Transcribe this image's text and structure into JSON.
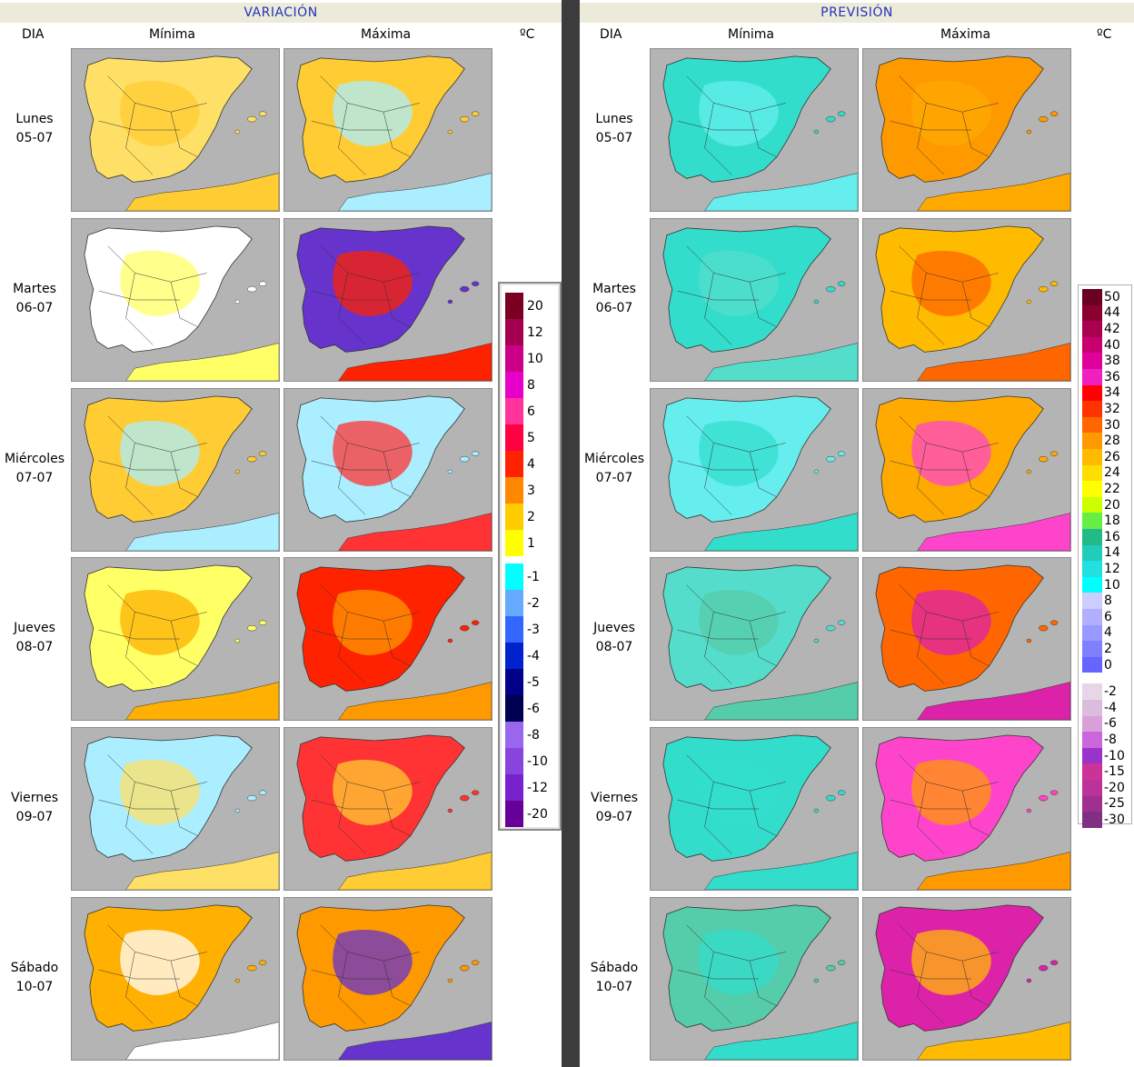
{
  "variacion": {
    "title": "VARIACIÓN",
    "col_day": "DIA",
    "col_min": "Mínima",
    "col_max": "Máxima",
    "unit": "ºC"
  },
  "prevision": {
    "title": "PREVISIÓN",
    "col_day": "DIA",
    "col_min": "Mínima",
    "col_max": "Máxima",
    "unit": "ºC"
  },
  "days": [
    {
      "name": "Lunes",
      "date": "05-07"
    },
    {
      "name": "Martes",
      "date": "06-07"
    },
    {
      "name": "Miércoles",
      "date": "07-07"
    },
    {
      "name": "Jueves",
      "date": "08-07"
    },
    {
      "name": "Viernes",
      "date": "09-07"
    },
    {
      "name": "Sábado",
      "date": "10-07"
    }
  ],
  "legend_variation": {
    "positive": [
      {
        "label": "20",
        "color": "#7a0021"
      },
      {
        "label": "12",
        "color": "#a5004f"
      },
      {
        "label": "10",
        "color": "#cc0088"
      },
      {
        "label": "8",
        "color": "#e600c8"
      },
      {
        "label": "6",
        "color": "#ff3399"
      },
      {
        "label": "5",
        "color": "#ff0040"
      },
      {
        "label": "4",
        "color": "#ff2200"
      },
      {
        "label": "3",
        "color": "#ff8800"
      },
      {
        "label": "2",
        "color": "#ffcc00"
      },
      {
        "label": "1",
        "color": "#ffff00"
      }
    ],
    "negative": [
      {
        "label": "-1",
        "color": "#00ffff"
      },
      {
        "label": "-2",
        "color": "#66aaff"
      },
      {
        "label": "-3",
        "color": "#3366ff"
      },
      {
        "label": "-4",
        "color": "#0022cc"
      },
      {
        "label": "-5",
        "color": "#000088"
      },
      {
        "label": "-6",
        "color": "#000050"
      },
      {
        "label": "-8",
        "color": "#9966ee"
      },
      {
        "label": "-10",
        "color": "#8844dd"
      },
      {
        "label": "-12",
        "color": "#7722cc"
      },
      {
        "label": "-20",
        "color": "#660099"
      }
    ]
  },
  "legend_forecast": {
    "items": [
      {
        "label": "50",
        "color": "#6b0020"
      },
      {
        "label": "44",
        "color": "#8c0030"
      },
      {
        "label": "42",
        "color": "#aa0050"
      },
      {
        "label": "40",
        "color": "#c8006f"
      },
      {
        "label": "38",
        "color": "#e0009a"
      },
      {
        "label": "36",
        "color": "#f020c0"
      },
      {
        "label": "34",
        "color": "#ff0000"
      },
      {
        "label": "32",
        "color": "#ff3300"
      },
      {
        "label": "30",
        "color": "#ff6600"
      },
      {
        "label": "28",
        "color": "#ff9900"
      },
      {
        "label": "26",
        "color": "#ffbb00"
      },
      {
        "label": "24",
        "color": "#ffdd00"
      },
      {
        "label": "22",
        "color": "#ffff00"
      },
      {
        "label": "20",
        "color": "#ccff00"
      },
      {
        "label": "18",
        "color": "#66ee44"
      },
      {
        "label": "16",
        "color": "#22bb88"
      },
      {
        "label": "14",
        "color": "#22ccbb"
      },
      {
        "label": "12",
        "color": "#22e0e0"
      },
      {
        "label": "10",
        "color": "#00ffff"
      },
      {
        "label": "8",
        "color": "#ccccff"
      },
      {
        "label": "6",
        "color": "#b0b0ff"
      },
      {
        "label": "4",
        "color": "#9999ff"
      },
      {
        "label": "2",
        "color": "#8080ff"
      },
      {
        "label": "0",
        "color": "#6666ff"
      },
      {
        "label": "-2",
        "color": "#e6d6e6"
      },
      {
        "label": "-4",
        "color": "#dcbcdc"
      },
      {
        "label": "-6",
        "color": "#d8a0d8"
      },
      {
        "label": "-8",
        "color": "#cc66dd"
      },
      {
        "label": "-10",
        "color": "#9933cc"
      },
      {
        "label": "-15",
        "color": "#cc3399"
      },
      {
        "label": "-20",
        "color": "#bb3399"
      },
      {
        "label": "-25",
        "color": "#a03090"
      },
      {
        "label": "-30",
        "color": "#803080"
      }
    ]
  },
  "map_colors": {
    "sea": "#b4b4b4",
    "border": "#333333",
    "var_min": [
      "#ffe066",
      "#ffffff",
      "#ffcc33",
      "#ffff66",
      "#aaeeff",
      "#ffb000"
    ],
    "var_max": [
      "#ffcc33",
      "#6633cc",
      "#aaeeff",
      "#ff2200",
      "#ff3333",
      "#ff9900"
    ],
    "prev_min": [
      "#33ddcc",
      "#33ddcc",
      "#66eeee",
      "#55ddcc",
      "#33ddcc",
      "#55ccaa"
    ],
    "prev_max": [
      "#ff9900",
      "#ffbb00",
      "#ffaa00",
      "#ff6600",
      "#ff44cc",
      "#dd22aa"
    ]
  }
}
